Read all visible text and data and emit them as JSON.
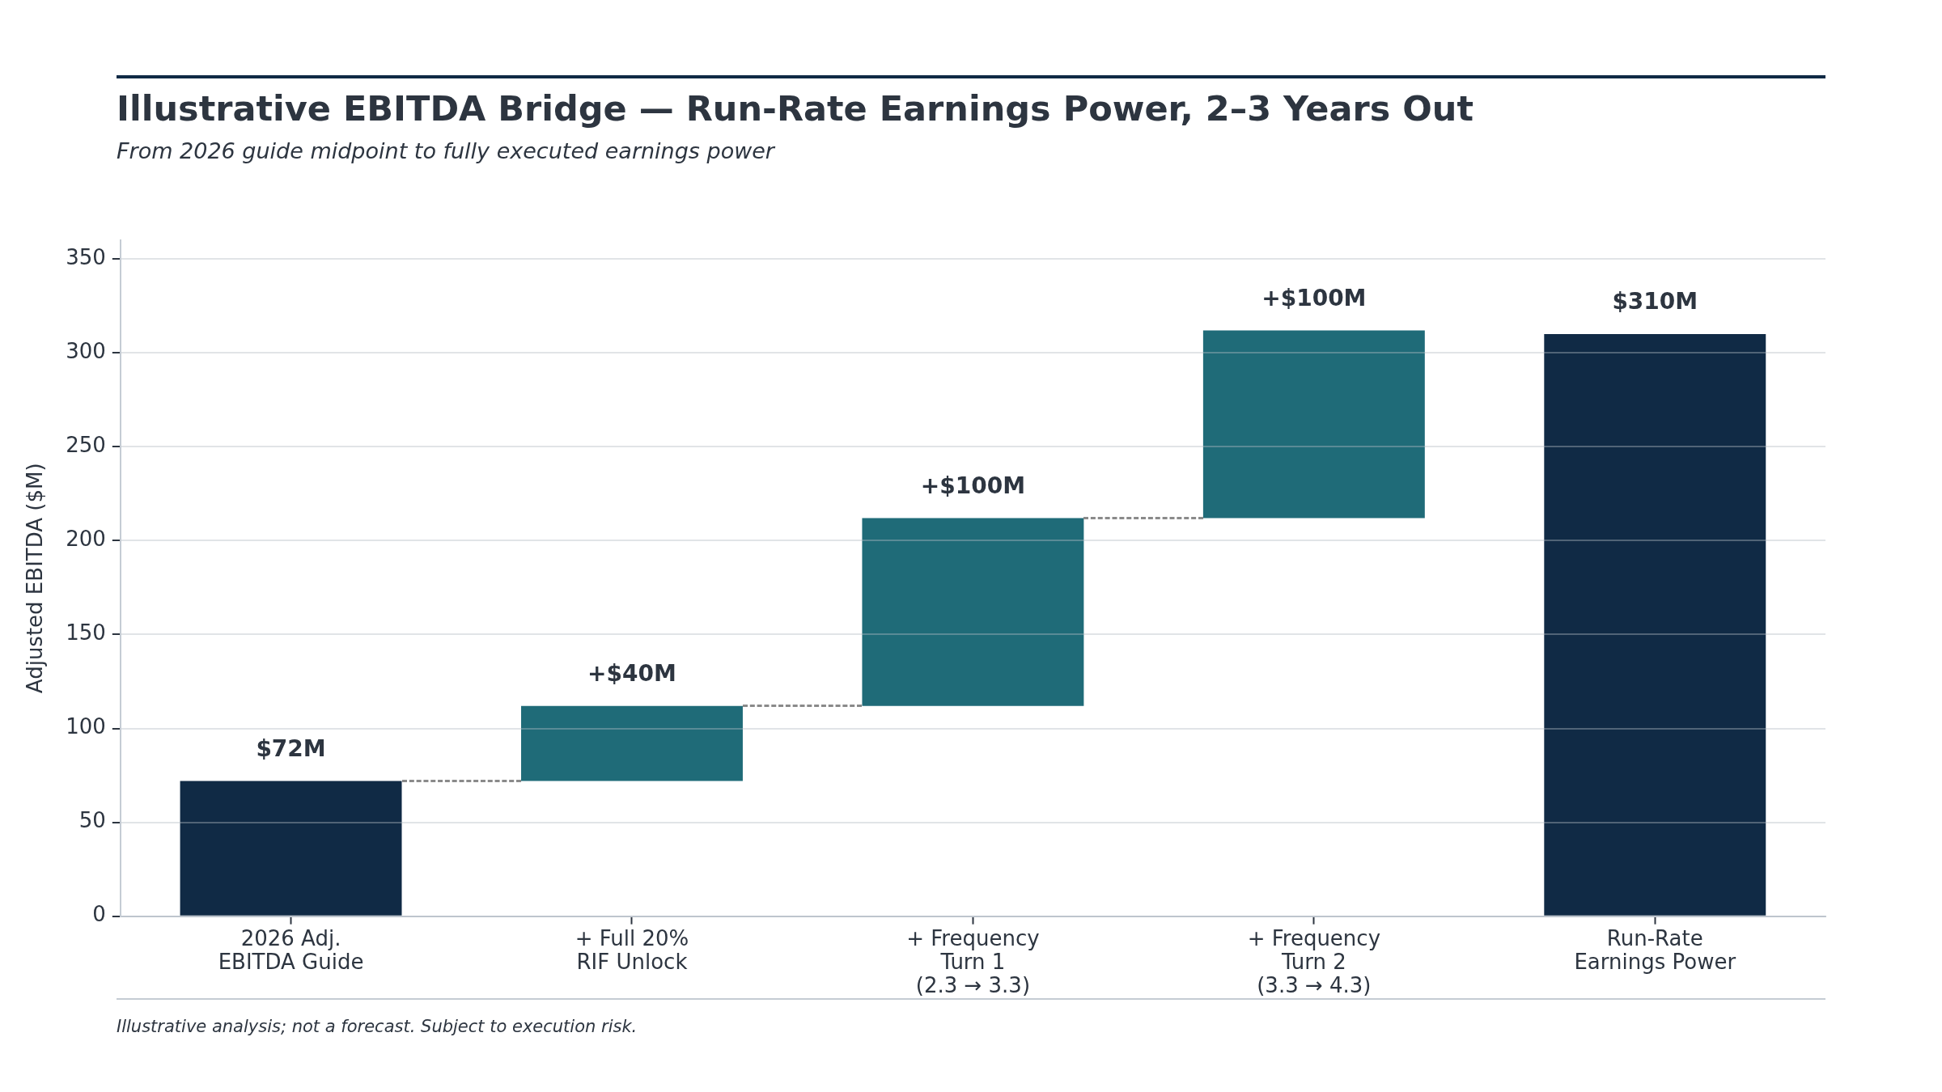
{
  "chart_data": {
    "type": "bar",
    "title": "Illustrative EBITDA Bridge — Run-Rate Earnings Power, 2–3 Years Out",
    "subtitle": "From 2026 guide midpoint to fully executed earnings power",
    "ylabel": "Adjusted EBITDA ($M)",
    "categories": [
      "2026 Adj.\nEBITDA Guide",
      "+ Full 20%\nRIF Unlock",
      "+ Frequency\nTurn 1\n(2.3 → 3.3)",
      "+ Frequency\nTurn 2\n(3.3 → 4.3)",
      "Run-Rate\nEarnings Power"
    ],
    "values": [
      72,
      40,
      100,
      100,
      310
    ],
    "base": [
      0,
      72,
      112,
      212,
      0
    ],
    "colors": [
      "#102a45",
      "#1f6b78",
      "#1f6b78",
      "#1f6b78",
      "#102a45"
    ],
    "value_labels": [
      "$72M",
      "+$40M",
      "+$100M",
      "+$100M",
      "$310M"
    ],
    "ylim": [
      0,
      360
    ],
    "yticks": [
      0,
      50,
      100,
      150,
      200,
      250,
      300,
      350
    ],
    "grid": "y",
    "annotations": [
      "Illustrative analysis; not a forecast. Subject to execution risk."
    ]
  }
}
